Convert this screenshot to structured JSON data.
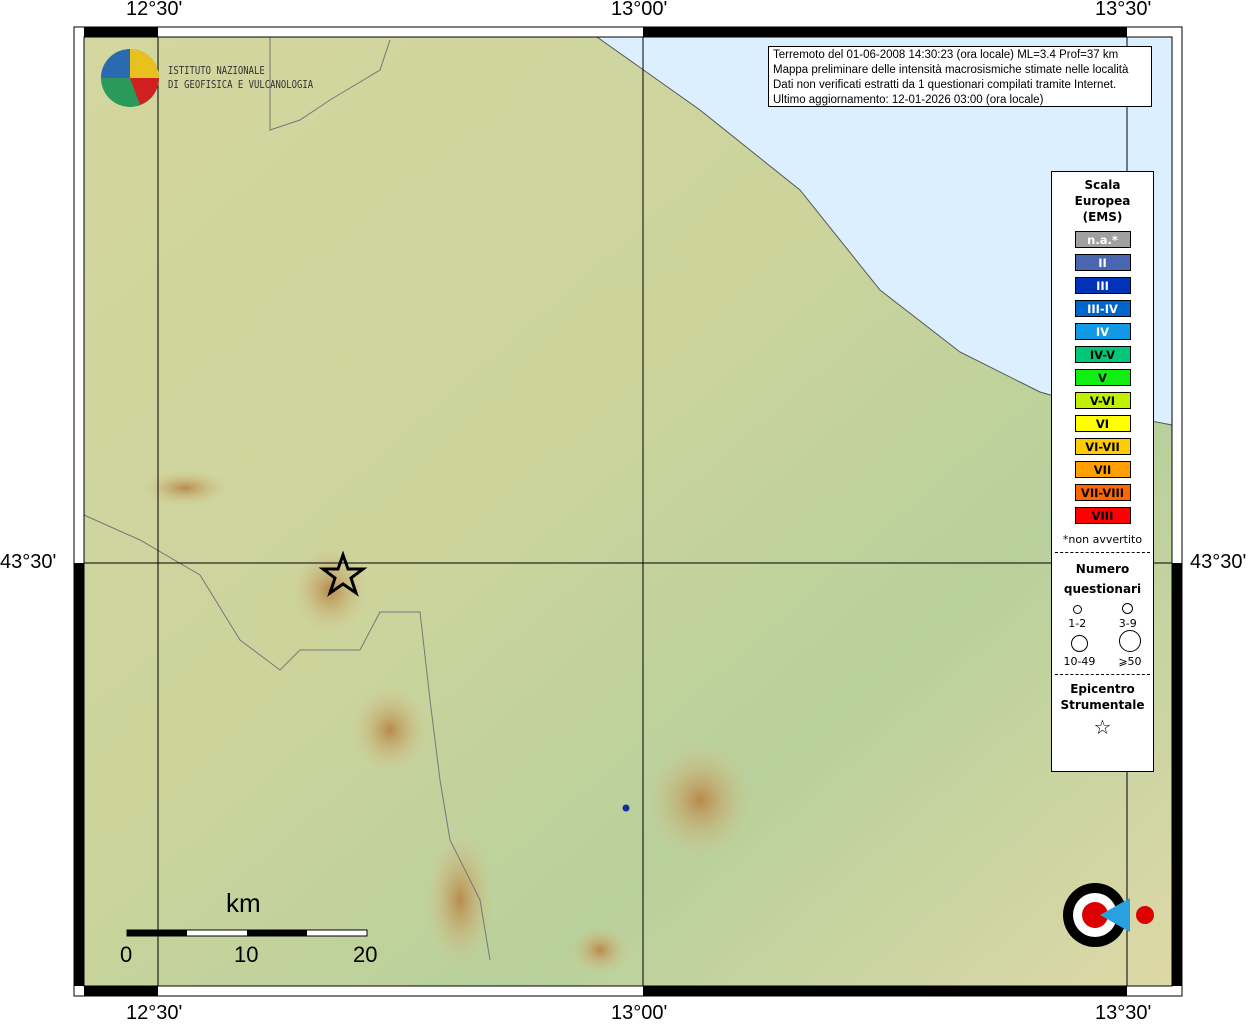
{
  "axes": {
    "lon_labels": [
      "12°30'",
      "13°00'",
      "13°30'"
    ],
    "lat_labels": [
      "43°30'"
    ]
  },
  "info": {
    "lines": [
      "Terremoto del 01-06-2008 14:30:23 (ora locale) ML=3.4 Prof=37 km",
      "Mappa preliminare delle intensità macrosismiche stimate nelle località",
      "Dati non verificati estratti da 1 questionari compilati tramite Internet.",
      "Ultimo aggiornamento: 12-01-2026 03:00 (ora locale)"
    ]
  },
  "logo_ingv": {
    "line1": "ISTITUTO NAZIONALE",
    "line2": "DI GEOFISICA E VULCANOLOGIA"
  },
  "logo_hsi": "www.haisentitoilterremoto.it",
  "legend": {
    "title": [
      "Scala",
      "Europea",
      "(EMS)"
    ],
    "scale": [
      {
        "label": "n.a.*",
        "color": "#a0a0a0",
        "text": "#fff"
      },
      {
        "label": "II",
        "color": "#4a66b0",
        "text": "#fff"
      },
      {
        "label": "III",
        "color": "#0033b8",
        "text": "#fff"
      },
      {
        "label": "III-IV",
        "color": "#0066cc",
        "text": "#fff"
      },
      {
        "label": "IV",
        "color": "#1199e6",
        "text": "#fff"
      },
      {
        "label": "IV-V",
        "color": "#00c878",
        "text": "#000"
      },
      {
        "label": "V",
        "color": "#11ee11",
        "text": "#000"
      },
      {
        "label": "V-VI",
        "color": "#c0f000",
        "text": "#000"
      },
      {
        "label": "VI",
        "color": "#ffff00",
        "text": "#000"
      },
      {
        "label": "VI-VII",
        "color": "#ffcc00",
        "text": "#000"
      },
      {
        "label": "VII",
        "color": "#ffa000",
        "text": "#000"
      },
      {
        "label": "VII-VIII",
        "color": "#ff6600",
        "text": "#000"
      },
      {
        "label": "VIII",
        "color": "#ff0000",
        "text": "#000"
      }
    ],
    "note": "*non avvertito",
    "questionari_title": [
      "Numero",
      "questionari"
    ],
    "questionari": [
      "1-2",
      "3-9",
      "10-49",
      "⩾50"
    ],
    "epicentro_title": [
      "Epicentro",
      "Strumentale"
    ]
  },
  "scalebar": {
    "unit": "km",
    "ticks": [
      "0",
      "10",
      "20"
    ]
  },
  "colors": {
    "sea": "#dcefff",
    "epicenter_dot": "#1030a0"
  }
}
